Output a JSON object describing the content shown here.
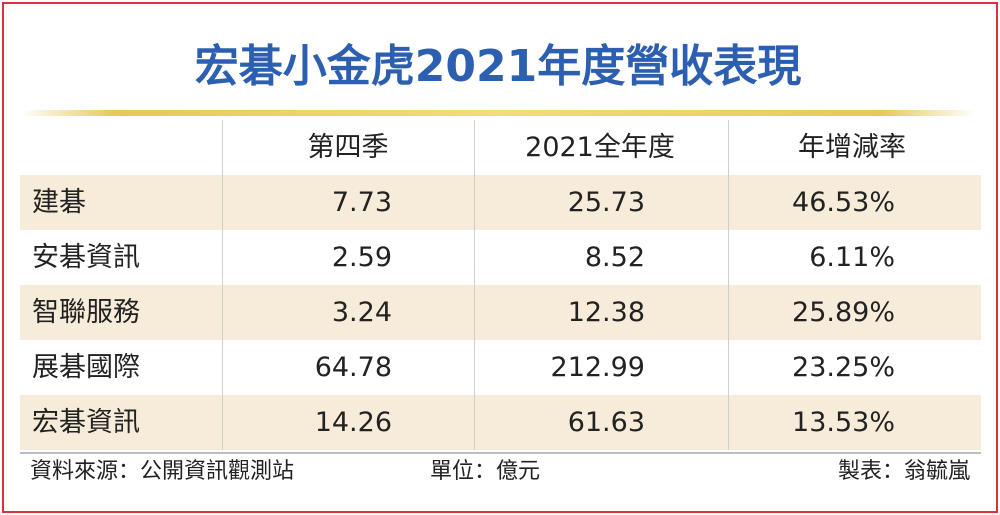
{
  "title": "宏碁小金虎2021年度營收表現",
  "table": {
    "header": [
      "第四季",
      "2021全年度",
      "年增減率"
    ],
    "rows": [
      [
        "建碁",
        "7.73",
        "25.73",
        "46.53%"
      ],
      [
        "安碁資訊",
        "2.59",
        "8.52",
        "6.11%"
      ],
      [
        "智聯服務",
        "3.24",
        "12.38",
        "25.89%"
      ],
      [
        "展碁國際",
        "64.78",
        "212.99",
        "23.25%"
      ],
      [
        "宏碁資訊",
        "14.26",
        "61.63",
        "13.53%"
      ]
    ]
  },
  "footer": {
    "source": "資料來源：公開資訊觀測站",
    "unit": "單位：億元",
    "author": "製表：翁毓嵐"
  }
}
